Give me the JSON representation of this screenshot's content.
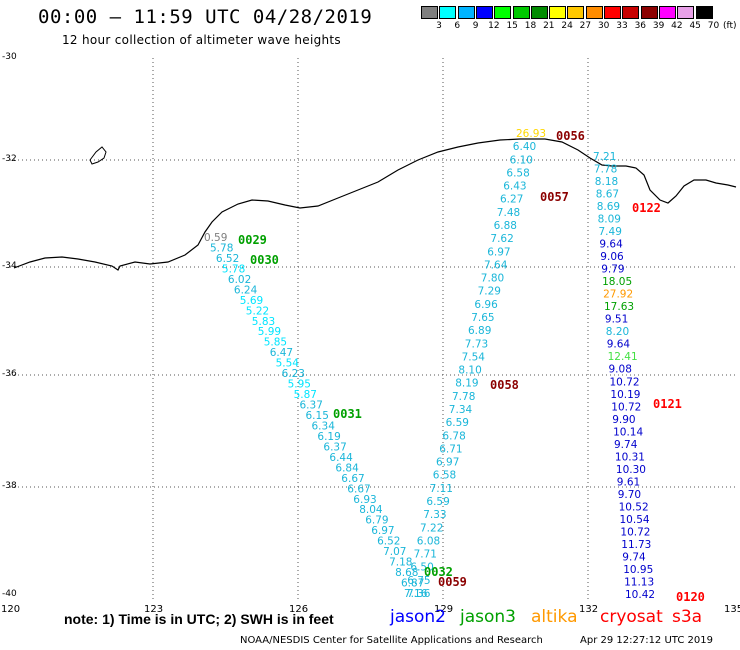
{
  "header": {
    "title": "00:00 – 11:59 UTC 04/28/2019",
    "subtitle": "12 hour collection of altimeter wave heights"
  },
  "colorbar": {
    "unit": "(ft)",
    "bins": [
      {
        "label": "3",
        "color": "#7f7f7f"
      },
      {
        "label": "6",
        "color": "#00ffff"
      },
      {
        "label": "9",
        "color": "#00b4ff"
      },
      {
        "label": "12",
        "color": "#0000ff"
      },
      {
        "label": "15",
        "color": "#00ff00"
      },
      {
        "label": "18",
        "color": "#00c800"
      },
      {
        "label": "21",
        "color": "#008c00"
      },
      {
        "label": "24",
        "color": "#ffff00"
      },
      {
        "label": "27",
        "color": "#ffc800"
      },
      {
        "label": "30",
        "color": "#ff8c00"
      },
      {
        "label": "33",
        "color": "#ff0000"
      },
      {
        "label": "36",
        "color": "#c80000"
      },
      {
        "label": "39",
        "color": "#8c0000"
      },
      {
        "label": "42",
        "color": "#ff00ff"
      },
      {
        "label": "45",
        "color": "#e8a0e8"
      },
      {
        "label": "70",
        "color": "#000000"
      }
    ]
  },
  "axes": {
    "lat_labels": [
      "-30",
      "-32",
      "-34",
      "-36",
      "-38",
      "-40"
    ],
    "lon_labels": [
      "120",
      "123",
      "126",
      "129",
      "132",
      "135"
    ]
  },
  "note": "note: 1) Time is in UTC; 2) SWH is in feet",
  "legend": [
    {
      "name": "jason2",
      "color": "#0000ff"
    },
    {
      "name": "jason3",
      "color": "#00a000"
    },
    {
      "name": "altika",
      "color": "#ff9900"
    },
    {
      "name": "cryosat",
      "color": "#ff0000"
    },
    {
      "name": "s3a",
      "color": "#ff0000"
    }
  ],
  "footer": {
    "credit": "NOAA/NESDIS Center for Satellite Applications and Research",
    "timestamp": "Apr 29 12:27:12 UTC 2019"
  },
  "pass_labels": [
    {
      "text": "0029",
      "color": "#00a000"
    },
    {
      "text": "0030",
      "color": "#00a000"
    },
    {
      "text": "0031",
      "color": "#00a000"
    },
    {
      "text": "0032",
      "color": "#00a000"
    },
    {
      "text": "0056",
      "color": "#8b0000"
    },
    {
      "text": "0057",
      "color": "#8b0000"
    },
    {
      "text": "0058",
      "color": "#8b0000"
    },
    {
      "text": "0059",
      "color": "#8b0000"
    },
    {
      "text": "0122",
      "color": "#ff0000"
    },
    {
      "text": "0121",
      "color": "#ff0000"
    },
    {
      "text": "0120",
      "color": "#ff0000"
    }
  ],
  "tracks": [
    {
      "name": "descending-track-left",
      "values": [
        {
          "v": "0.59",
          "color": "#7f7f7f"
        },
        {
          "v": "5.78",
          "color": "#1ab6d9"
        },
        {
          "v": "6.52",
          "color": "#1ab6d9"
        },
        {
          "v": "5.78",
          "color": "#00e5ff"
        },
        {
          "v": "6.02",
          "color": "#1ab6d9"
        },
        {
          "v": "6.24",
          "color": "#1ab6d9"
        },
        {
          "v": "5.69",
          "color": "#00e5ff"
        },
        {
          "v": "5.22",
          "color": "#00e5ff"
        },
        {
          "v": "5.83",
          "color": "#00e5ff"
        },
        {
          "v": "5.99",
          "color": "#00e5ff"
        },
        {
          "v": "5.85",
          "color": "#00e5ff"
        },
        {
          "v": "6.47",
          "color": "#1ab6d9"
        },
        {
          "v": "5.54",
          "color": "#00e5ff"
        },
        {
          "v": "6.23",
          "color": "#1ab6d9"
        },
        {
          "v": "5.95",
          "color": "#00e5ff"
        },
        {
          "v": "5.87",
          "color": "#00e5ff"
        },
        {
          "v": "6.37",
          "color": "#1ab6d9"
        },
        {
          "v": "6.15",
          "color": "#1ab6d9"
        },
        {
          "v": "6.34",
          "color": "#1ab6d9"
        },
        {
          "v": "6.19",
          "color": "#1ab6d9"
        },
        {
          "v": "6.37",
          "color": "#1ab6d9"
        },
        {
          "v": "6.44",
          "color": "#1ab6d9"
        },
        {
          "v": "6.84",
          "color": "#1ab6d9"
        },
        {
          "v": "6.67",
          "color": "#1ab6d9"
        },
        {
          "v": "6.67",
          "color": "#1ab6d9"
        },
        {
          "v": "6.93",
          "color": "#1ab6d9"
        },
        {
          "v": "8.04",
          "color": "#1ab6d9"
        },
        {
          "v": "6.79",
          "color": "#1ab6d9"
        },
        {
          "v": "6.97",
          "color": "#1ab6d9"
        },
        {
          "v": "6.52",
          "color": "#1ab6d9"
        },
        {
          "v": "7.07",
          "color": "#1ab6d9"
        },
        {
          "v": "7.18",
          "color": "#1ab6d9"
        },
        {
          "v": "8.68",
          "color": "#1ab6d9"
        },
        {
          "v": "6.87",
          "color": "#1ab6d9"
        },
        {
          "v": "7.36",
          "color": "#1ab6d9"
        }
      ]
    },
    {
      "name": "ascending-track-middle",
      "values": [
        {
          "v": "26.93",
          "color": "#ffd700"
        },
        {
          "v": "6.40",
          "color": "#1ab6d9"
        },
        {
          "v": "6.10",
          "color": "#1ab6d9"
        },
        {
          "v": "6.58",
          "color": "#1ab6d9"
        },
        {
          "v": "6.43",
          "color": "#1ab6d9"
        },
        {
          "v": "6.27",
          "color": "#1ab6d9"
        },
        {
          "v": "7.48",
          "color": "#1ab6d9"
        },
        {
          "v": "6.88",
          "color": "#1ab6d9"
        },
        {
          "v": "7.62",
          "color": "#1ab6d9"
        },
        {
          "v": "6.97",
          "color": "#1ab6d9"
        },
        {
          "v": "7.64",
          "color": "#1ab6d9"
        },
        {
          "v": "7.80",
          "color": "#1ab6d9"
        },
        {
          "v": "7.29",
          "color": "#1ab6d9"
        },
        {
          "v": "6.96",
          "color": "#1ab6d9"
        },
        {
          "v": "7.65",
          "color": "#1ab6d9"
        },
        {
          "v": "6.89",
          "color": "#1ab6d9"
        },
        {
          "v": "7.73",
          "color": "#1ab6d9"
        },
        {
          "v": "7.54",
          "color": "#1ab6d9"
        },
        {
          "v": "8.10",
          "color": "#1ab6d9"
        },
        {
          "v": "8.19",
          "color": "#1ab6d9"
        },
        {
          "v": "7.78",
          "color": "#1ab6d9"
        },
        {
          "v": "7.34",
          "color": "#1ab6d9"
        },
        {
          "v": "6.59",
          "color": "#1ab6d9"
        },
        {
          "v": "6.78",
          "color": "#1ab6d9"
        },
        {
          "v": "6.71",
          "color": "#1ab6d9"
        },
        {
          "v": "6.97",
          "color": "#1ab6d9"
        },
        {
          "v": "6.58",
          "color": "#1ab6d9"
        },
        {
          "v": "7.11",
          "color": "#1ab6d9"
        },
        {
          "v": "6.59",
          "color": "#1ab6d9"
        },
        {
          "v": "7.33",
          "color": "#1ab6d9"
        },
        {
          "v": "7.22",
          "color": "#1ab6d9"
        },
        {
          "v": "6.08",
          "color": "#1ab6d9"
        },
        {
          "v": "7.71",
          "color": "#1ab6d9"
        },
        {
          "v": "6.50",
          "color": "#1ab6d9"
        },
        {
          "v": "6.75",
          "color": "#1ab6d9"
        },
        {
          "v": "7.16",
          "color": "#1ab6d9"
        }
      ]
    },
    {
      "name": "descending-track-right",
      "values": [
        {
          "v": "7.21",
          "color": "#1ab6d9"
        },
        {
          "v": "7.78",
          "color": "#1ab6d9"
        },
        {
          "v": "8.18",
          "color": "#1ab6d9"
        },
        {
          "v": "8.67",
          "color": "#1ab6d9"
        },
        {
          "v": "8.69",
          "color": "#1ab6d9"
        },
        {
          "v": "8.09",
          "color": "#1ab6d9"
        },
        {
          "v": "7.49",
          "color": "#1ab6d9"
        },
        {
          "v": "9.64",
          "color": "#0000cc"
        },
        {
          "v": "9.06",
          "color": "#0000cc"
        },
        {
          "v": "9.79",
          "color": "#0000cc"
        },
        {
          "v": "18.05",
          "color": "#00a000"
        },
        {
          "v": "27.92",
          "color": "#ff9900"
        },
        {
          "v": "17.63",
          "color": "#00a000"
        },
        {
          "v": "9.51",
          "color": "#0000cc"
        },
        {
          "v": "8.20",
          "color": "#1ab6d9"
        },
        {
          "v": "9.64",
          "color": "#0000cc"
        },
        {
          "v": "12.41",
          "color": "#44e044"
        },
        {
          "v": "9.08",
          "color": "#0000cc"
        },
        {
          "v": "10.72",
          "color": "#0000cc"
        },
        {
          "v": "10.19",
          "color": "#0000cc"
        },
        {
          "v": "10.72",
          "color": "#0000cc"
        },
        {
          "v": "9.90",
          "color": "#0000cc"
        },
        {
          "v": "10.14",
          "color": "#0000cc"
        },
        {
          "v": "9.74",
          "color": "#0000cc"
        },
        {
          "v": "10.31",
          "color": "#0000cc"
        },
        {
          "v": "10.30",
          "color": "#0000cc"
        },
        {
          "v": "9.61",
          "color": "#0000cc"
        },
        {
          "v": "9.70",
          "color": "#0000cc"
        },
        {
          "v": "10.52",
          "color": "#0000cc"
        },
        {
          "v": "10.54",
          "color": "#0000cc"
        },
        {
          "v": "10.72",
          "color": "#0000cc"
        },
        {
          "v": "11.73",
          "color": "#0000cc"
        },
        {
          "v": "9.74",
          "color": "#0000cc"
        },
        {
          "v": "10.95",
          "color": "#0000cc"
        },
        {
          "v": "11.13",
          "color": "#0000cc"
        },
        {
          "v": "10.42",
          "color": "#0000cc"
        }
      ]
    }
  ]
}
